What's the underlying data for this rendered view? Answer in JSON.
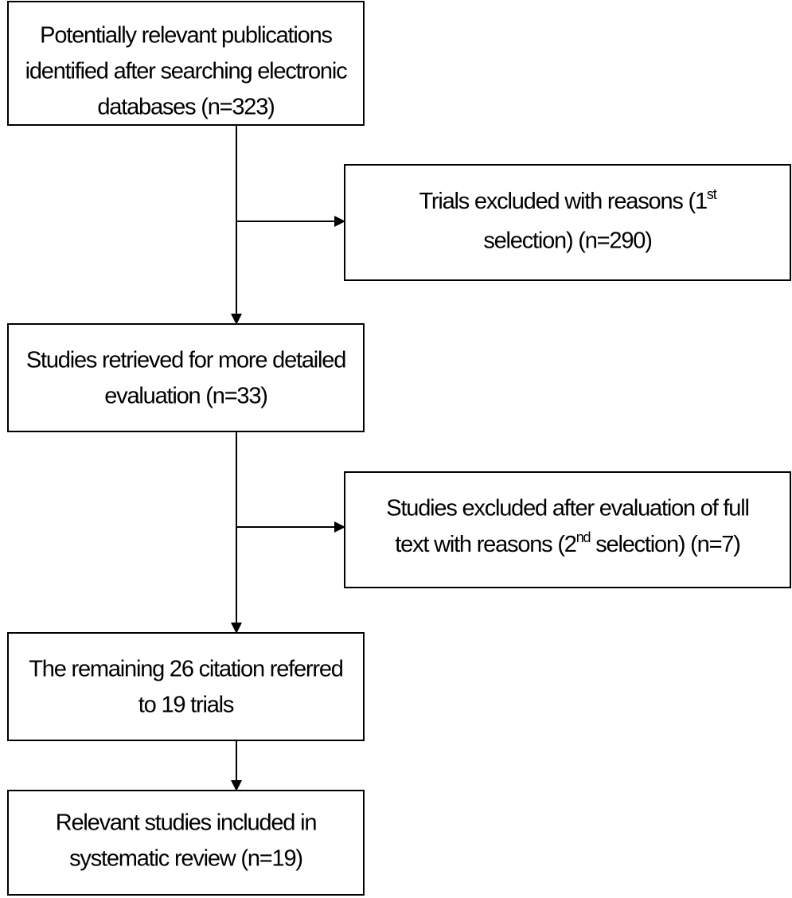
{
  "nodes": [
    {
      "lines": [
        "Potentially relevant publications",
        "identified after searching electronic",
        "databases (n=323)"
      ]
    },
    {
      "lines": [
        [
          {
            "text": "Trials excluded with reasons (1"
          },
          {
            "sup": "st"
          }
        ],
        "selection) (n=290)"
      ]
    },
    {
      "lines": [
        "Studies retrieved for more detailed",
        "evaluation (n=33)"
      ]
    },
    {
      "lines": [
        "Studies excluded after evaluation of full",
        [
          {
            "text": "text with reasons (2"
          },
          {
            "sup": "nd"
          },
          {
            "text": " selection) (n=7)"
          }
        ]
      ]
    },
    {
      "lines": [
        "The remaining 26 citation referred",
        "to 19 trials"
      ]
    },
    {
      "lines": [
        "Relevant studies included in",
        "systematic review (n=19)"
      ]
    }
  ]
}
